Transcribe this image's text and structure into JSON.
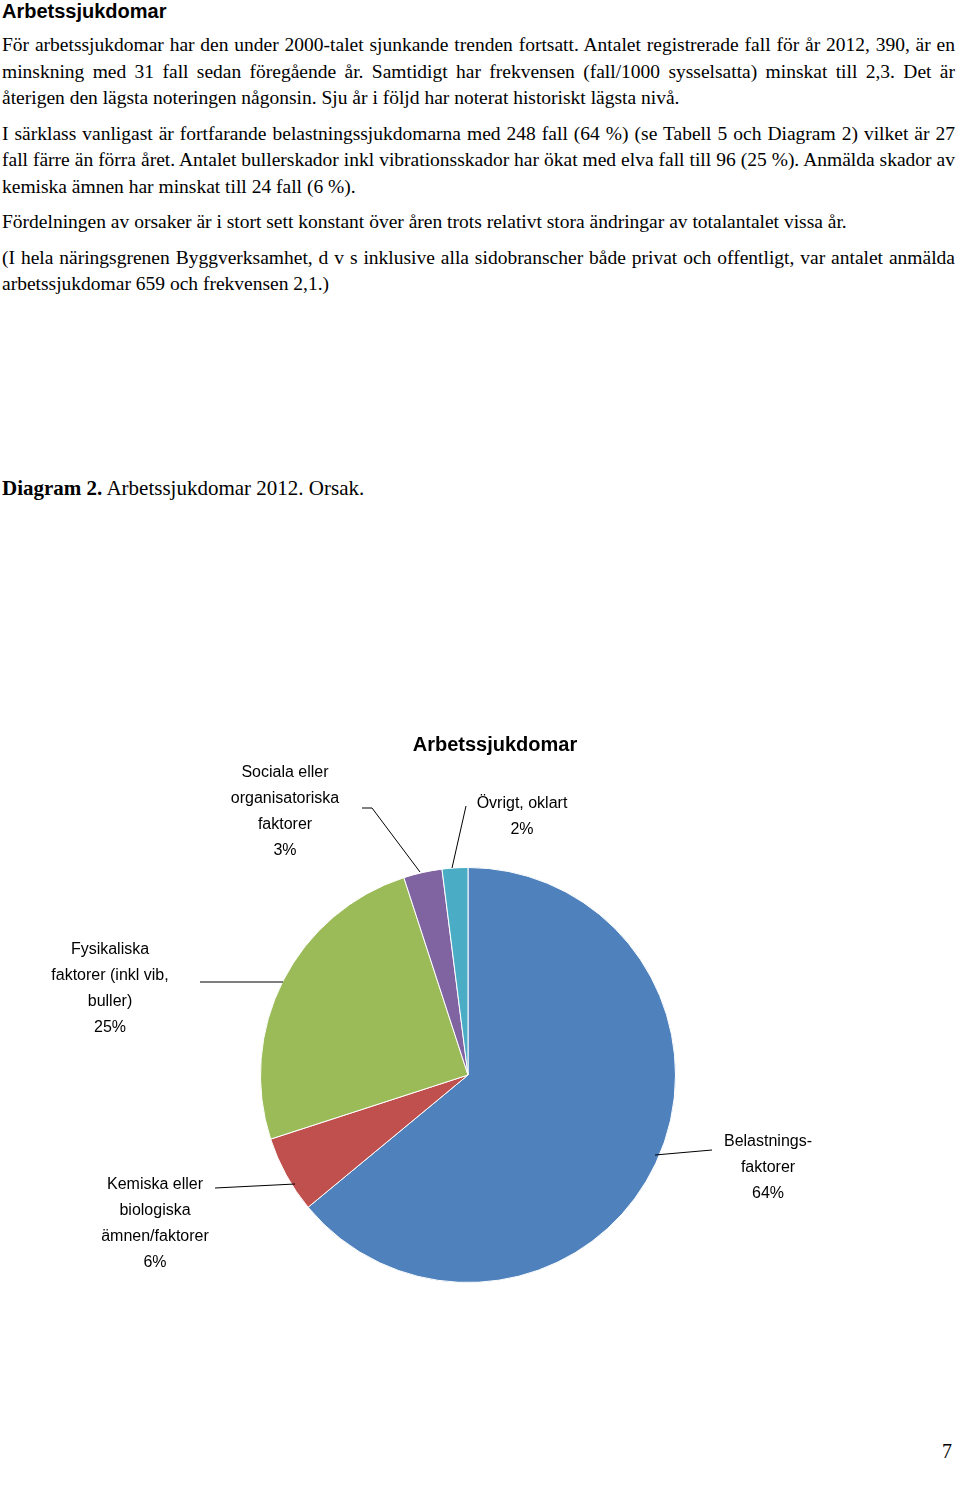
{
  "document": {
    "heading": "Arbetssjukdomar",
    "paragraphs": [
      "För arbetssjukdomar har den under 2000-talet sjunkande trenden fortsatt. Antalet registrerade fall för år 2012, 390, är en minskning med 31 fall sedan föregående år. Samtidigt har frekvensen (fall/1000 sysselsatta) minskat till 2,3. Det är återigen den lägsta noteringen någonsin. Sju år i följd har noterat historiskt lägsta nivå.",
      "I särklass vanligast är fortfarande belastningssjukdomarna med 248 fall (64 %) (se Tabell 5 och Diagram 2) vilket är 27 fall färre än förra året. Antalet bullerskador inkl vibrationsskador har ökat med elva fall till 96 (25 %). Anmälda skador av kemiska ämnen har minskat till 24 fall (6 %).",
      "Fördelningen av orsaker är i stort sett konstant över åren trots relativt stora ändringar av totalantalet vissa år.",
      "(I hela näringsgrenen Byggverksamhet, d v s inklusive alla sidobranscher både privat och offentligt, var antalet anmälda arbetssjukdomar 659 och frekvensen 2,1.)"
    ],
    "caption": {
      "label": "Diagram 2.",
      "text": "Arbetssjukdomar 2012. Orsak."
    },
    "page_number": "7"
  },
  "chart_data": {
    "type": "pie",
    "title": "Arbetssjukdomar",
    "categories": [
      "Belastnings-\nfaktorer",
      "Kemiska eller\nbiologiska\nämnen/faktorer",
      "Fysikaliska\nfaktorer (inkl vib,\nbuller)",
      "Sociala eller\norganisatoriska\nfaktorer",
      "Övrigt, oklart"
    ],
    "values": [
      64,
      6,
      25,
      3,
      2
    ],
    "value_labels": [
      "64%",
      "6%",
      "25%",
      "3%",
      "2%"
    ],
    "colors": [
      "#4f81bd",
      "#c0504d",
      "#9bbb59",
      "#8064a2",
      "#4bacc6"
    ],
    "data_labels": true
  }
}
